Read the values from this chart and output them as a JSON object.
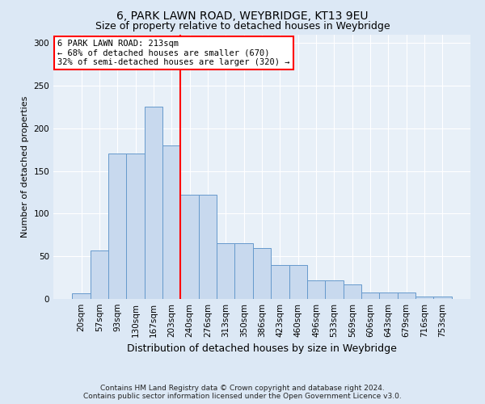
{
  "title1": "6, PARK LAWN ROAD, WEYBRIDGE, KT13 9EU",
  "title2": "Size of property relative to detached houses in Weybridge",
  "xlabel": "Distribution of detached houses by size in Weybridge",
  "ylabel": "Number of detached properties",
  "footer1": "Contains HM Land Registry data © Crown copyright and database right 2024.",
  "footer2": "Contains public sector information licensed under the Open Government Licence v3.0.",
  "bin_labels": [
    "20sqm",
    "57sqm",
    "93sqm",
    "130sqm",
    "167sqm",
    "203sqm",
    "240sqm",
    "276sqm",
    "313sqm",
    "350sqm",
    "386sqm",
    "423sqm",
    "460sqm",
    "496sqm",
    "533sqm",
    "569sqm",
    "606sqm",
    "643sqm",
    "679sqm",
    "716sqm",
    "753sqm"
  ],
  "bar_values": [
    7,
    57,
    170,
    170,
    225,
    180,
    122,
    122,
    65,
    65,
    60,
    40,
    40,
    22,
    22,
    17,
    8,
    8,
    8,
    3,
    3
  ],
  "bar_color": "#c8d9ee",
  "bar_edge_color": "#6699cc",
  "vline_color": "red",
  "vline_x": 5.5,
  "annotation_title": "6 PARK LAWN ROAD: 213sqm",
  "annotation_line2": "← 68% of detached houses are smaller (670)",
  "annotation_line3": "32% of semi-detached houses are larger (320) →",
  "annotation_box_color": "white",
  "annotation_box_edge": "red",
  "bg_color": "#dce8f5",
  "plot_bg_color": "#e8f0f8",
  "ylim": [
    0,
    310
  ],
  "yticks": [
    0,
    50,
    100,
    150,
    200,
    250,
    300
  ],
  "title1_fontsize": 10,
  "title2_fontsize": 9,
  "ylabel_fontsize": 8,
  "xlabel_fontsize": 9,
  "tick_fontsize": 7.5,
  "footer_fontsize": 6.5,
  "ann_fontsize": 7.5
}
